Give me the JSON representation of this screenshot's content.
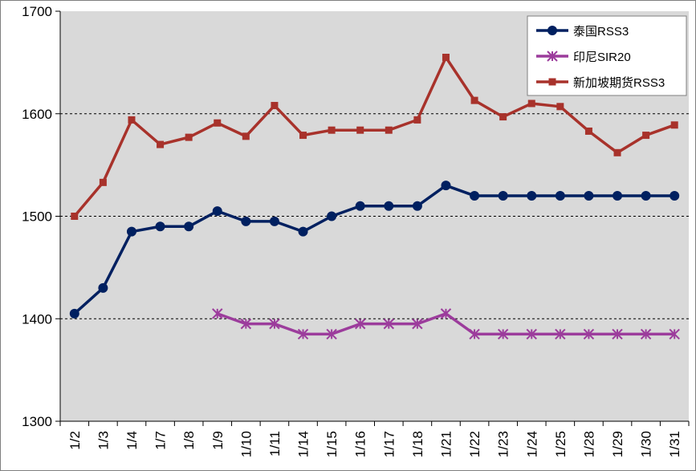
{
  "chart_data": {
    "type": "line",
    "title": "",
    "xlabel": "",
    "ylabel": "",
    "ylim": [
      1300,
      1700
    ],
    "yticks": [
      1300,
      1400,
      1500,
      1600,
      1700
    ],
    "grid": "horizontal dashed",
    "legend_position": "top-right",
    "categories": [
      "1/2",
      "1/3",
      "1/4",
      "1/7",
      "1/8",
      "1/9",
      "1/10",
      "1/11",
      "1/14",
      "1/15",
      "1/16",
      "1/17",
      "1/18",
      "1/21",
      "1/22",
      "1/23",
      "1/24",
      "1/25",
      "1/28",
      "1/29",
      "1/30",
      "1/31"
    ],
    "series": [
      {
        "name": "泰国RSS3",
        "color": "#002060",
        "marker": "circle",
        "values": [
          1405,
          1430,
          1485,
          1490,
          1490,
          1505,
          1495,
          1495,
          1485,
          1500,
          1510,
          1510,
          1510,
          1530,
          1520,
          1520,
          1520,
          1520,
          1520,
          1520,
          1520,
          1520
        ]
      },
      {
        "name": "印尼SIR20",
        "color": "#9c3c9c",
        "marker": "asterisk",
        "values": [
          null,
          null,
          null,
          null,
          null,
          1405,
          1395,
          1395,
          1385,
          1385,
          1395,
          1395,
          1395,
          1405,
          1385,
          1385,
          1385,
          1385,
          1385,
          1385,
          1385,
          1385
        ]
      },
      {
        "name": "新加坡期货RSS3",
        "color": "#a8322b",
        "marker": "square",
        "values": [
          1500,
          1533,
          1594,
          1570,
          1577,
          1591,
          1578,
          1608,
          1579,
          1584,
          1584,
          1584,
          1594,
          1655,
          1613,
          1597,
          1610,
          1607,
          1583,
          1562,
          1579,
          1589
        ]
      }
    ]
  }
}
